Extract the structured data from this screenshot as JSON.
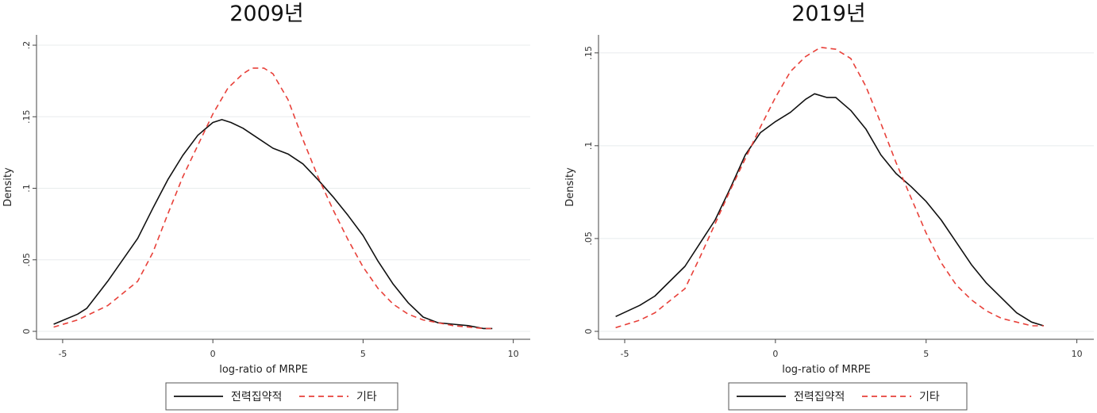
{
  "chart_data": [
    {
      "type": "line",
      "title": "2009년",
      "xlabel": "log-ratio of MRPE",
      "ylabel": "Density",
      "xlim": [
        -5.5,
        10.3
      ],
      "ylim": [
        0,
        0.205
      ],
      "xticks": [
        -5,
        0,
        5,
        10
      ],
      "xtick_labels": [
        "-5",
        "0",
        "5",
        "10"
      ],
      "yticks": [
        0,
        0.05,
        0.1,
        0.15,
        0.2
      ],
      "ytick_labels": [
        "0",
        ".05",
        ".1",
        ".15",
        ".2"
      ],
      "grid": true,
      "legend": "bottom",
      "series": [
        {
          "name": "전력집약적",
          "color": "#111111",
          "dash": "solid",
          "x": [
            -5.3,
            -4.5,
            -4.2,
            -3.5,
            -2.5,
            -2.0,
            -1.5,
            -1.0,
            -0.5,
            0.0,
            0.3,
            0.6,
            1.0,
            1.5,
            2.0,
            2.5,
            3.0,
            3.5,
            4.0,
            4.5,
            5.0,
            5.5,
            6.0,
            6.5,
            7.0,
            7.5,
            8.0,
            8.5,
            9.0,
            9.3
          ],
          "y": [
            0.005,
            0.012,
            0.016,
            0.035,
            0.065,
            0.086,
            0.106,
            0.123,
            0.137,
            0.146,
            0.148,
            0.146,
            0.142,
            0.135,
            0.128,
            0.124,
            0.117,
            0.106,
            0.094,
            0.081,
            0.067,
            0.049,
            0.033,
            0.02,
            0.01,
            0.006,
            0.005,
            0.004,
            0.002,
            0.002
          ]
        },
        {
          "name": "기타",
          "color": "#e8413a",
          "dash": "dashed",
          "x": [
            -5.3,
            -4.5,
            -3.5,
            -2.5,
            -2.0,
            -1.5,
            -1.0,
            -0.5,
            0.0,
            0.5,
            1.0,
            1.3,
            1.7,
            2.0,
            2.5,
            3.0,
            3.5,
            4.0,
            4.5,
            5.0,
            5.5,
            6.0,
            6.5,
            7.0,
            7.5,
            8.0,
            8.5,
            9.0,
            9.3
          ],
          "y": [
            0.003,
            0.008,
            0.018,
            0.035,
            0.055,
            0.082,
            0.108,
            0.13,
            0.152,
            0.17,
            0.18,
            0.184,
            0.184,
            0.18,
            0.162,
            0.134,
            0.108,
            0.085,
            0.064,
            0.045,
            0.03,
            0.019,
            0.012,
            0.008,
            0.006,
            0.004,
            0.003,
            0.002,
            0.002
          ]
        }
      ]
    },
    {
      "type": "line",
      "title": "2019년",
      "xlabel": "log-ratio of MRPE",
      "ylabel": "Density",
      "xlim": [
        -5.5,
        10.3
      ],
      "ylim": [
        0,
        0.158
      ],
      "xticks": [
        -5,
        0,
        5,
        10
      ],
      "xtick_labels": [
        "-5",
        "0",
        "5",
        "10"
      ],
      "yticks": [
        0,
        0.05,
        0.1,
        0.15
      ],
      "ytick_labels": [
        "0",
        ".05",
        ".1",
        ".15"
      ],
      "grid": true,
      "legend": "bottom",
      "series": [
        {
          "name": "전력집약적",
          "color": "#111111",
          "dash": "solid",
          "x": [
            -5.3,
            -4.5,
            -4.0,
            -3.0,
            -2.0,
            -1.5,
            -1.0,
            -0.5,
            0.0,
            0.5,
            1.0,
            1.3,
            1.7,
            2.0,
            2.5,
            3.0,
            3.5,
            4.0,
            4.5,
            5.0,
            5.5,
            6.0,
            6.5,
            7.0,
            7.5,
            8.0,
            8.5,
            8.9
          ],
          "y": [
            0.008,
            0.014,
            0.019,
            0.035,
            0.06,
            0.077,
            0.095,
            0.107,
            0.113,
            0.118,
            0.125,
            0.128,
            0.126,
            0.126,
            0.119,
            0.109,
            0.095,
            0.085,
            0.078,
            0.07,
            0.06,
            0.048,
            0.036,
            0.026,
            0.018,
            0.01,
            0.005,
            0.003
          ]
        },
        {
          "name": "기타",
          "color": "#e8413a",
          "dash": "dashed",
          "x": [
            -5.3,
            -4.5,
            -4.0,
            -3.0,
            -2.5,
            -2.0,
            -1.5,
            -1.0,
            -0.5,
            0.0,
            0.5,
            1.0,
            1.5,
            2.0,
            2.5,
            3.0,
            3.5,
            4.0,
            4.5,
            5.0,
            5.5,
            6.0,
            6.5,
            7.0,
            7.5,
            8.0,
            8.5,
            8.9
          ],
          "y": [
            0.002,
            0.006,
            0.01,
            0.023,
            0.04,
            0.058,
            0.076,
            0.093,
            0.11,
            0.126,
            0.14,
            0.148,
            0.153,
            0.152,
            0.147,
            0.132,
            0.112,
            0.091,
            0.072,
            0.053,
            0.037,
            0.025,
            0.017,
            0.011,
            0.007,
            0.005,
            0.003,
            0.003
          ]
        }
      ]
    }
  ]
}
